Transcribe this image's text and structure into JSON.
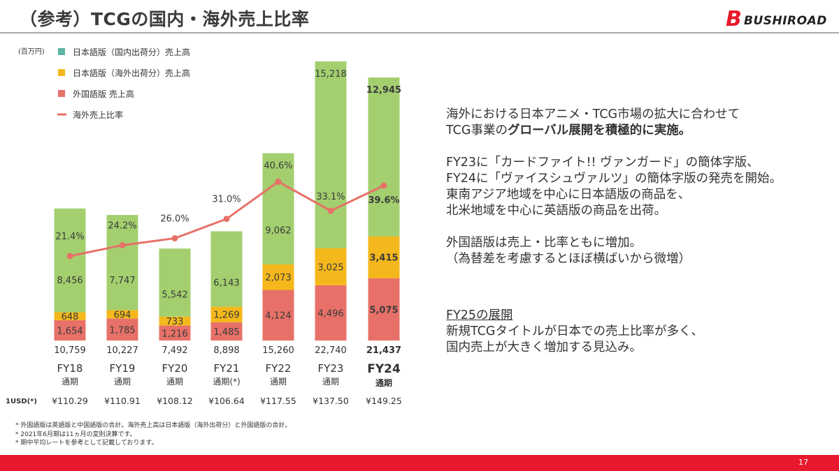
{
  "title": "（参考）TCGの国内・海外売上比率",
  "logo": {
    "mark": "B",
    "word": "BUSHIROAD"
  },
  "chart_data": {
    "type": "bar",
    "stacked": true,
    "unit_label": "(百万円)",
    "categories": [
      "FY18",
      "FY19",
      "FY20",
      "FY21",
      "FY22",
      "FY23",
      "FY24"
    ],
    "category_sub": [
      "通期",
      "通期",
      "通期",
      "通期(*)",
      "通期",
      "通期",
      "通期"
    ],
    "series": [
      {
        "name": "日本語版（国内出荷分）売上高",
        "color": "#a3cf6f",
        "values": [
          8456,
          7747,
          5542,
          6143,
          9062,
          15218,
          12945
        ]
      },
      {
        "name": "日本語版（海外出荷分）売上高",
        "color": "#f4b81c",
        "values": [
          648,
          694,
          733,
          1269,
          2073,
          3025,
          3415
        ]
      },
      {
        "name": "外国語版 売上高",
        "color": "#e77168",
        "values": [
          1654,
          1785,
          1216,
          1485,
          4124,
          4496,
          5075
        ]
      }
    ],
    "legend_first_swatch_color": "#5bb5a2",
    "line_series": {
      "name": "海外売上比率",
      "color": "#e77168",
      "values": [
        21.4,
        24.2,
        26.0,
        31.0,
        40.6,
        33.1,
        39.6
      ],
      "labels": [
        "21.4%",
        "24.2%",
        "26.0%",
        "31.0%",
        "40.6%",
        "33.1%",
        "39.6%"
      ]
    },
    "value_labels": [
      [
        "8,456",
        "7,747",
        "5,542",
        "6,143",
        "9,062",
        "15,218",
        "12,945"
      ],
      [
        "648",
        "694",
        "733",
        "1,269",
        "2,073",
        "3,025",
        "3,415"
      ],
      [
        "1,654",
        "1,785",
        "1,216",
        "1,485",
        "4,124",
        "4,496",
        "5,075"
      ]
    ],
    "totals": [
      "10,759",
      "10,227",
      "7,492",
      "8,898",
      "15,260",
      "22,740",
      "21,437"
    ],
    "usd_label": "1USD(*)",
    "usd_rates": [
      "¥110.29",
      "¥110.91",
      "¥108.12",
      "¥106.64",
      "¥117.55",
      "¥137.50",
      "¥149.25"
    ],
    "highlight_category": "FY24",
    "legend_placement": "top-left",
    "grid": false
  },
  "right_text": {
    "p1_line1": "海外における日本アニメ・TCG市場の拡大に合わせて",
    "p1_line2_normal": "TCG事業の",
    "p1_line2_bold": "グローバル展開を積極的に実施。",
    "p2_line1": "FY23に「カードファイト!! ヴァンガード」の簡体字版、",
    "p2_line2": "FY24に「ヴァイスシュヴァルツ」の簡体字版の発売を開始。",
    "p2_line3": "東南アジア地域を中心に日本語版の商品を、",
    "p2_line4": "北米地域を中心に英語版の商品を出荷。",
    "p3_line1": "外国語版は売上・比率ともに増加。",
    "p3_line2": "（為替差を考慮するとほぼ横ばいから微増）",
    "p4_heading": "FY25の展開",
    "p4_line1": "新規TCGタイトルが日本での売上比率が多く、",
    "p4_line2": "国内売上が大きく増加する見込み。"
  },
  "footnotes": [
    "* 外国語版は英語版と中国語版の合計。海外売上高は日本語版（海外出荷分）と外国語版の合計。",
    "* 2021年6月期は11ヵ月の変則決算です。",
    "* 期中平均レートを参考として記載しております。"
  ],
  "page_number": "17"
}
